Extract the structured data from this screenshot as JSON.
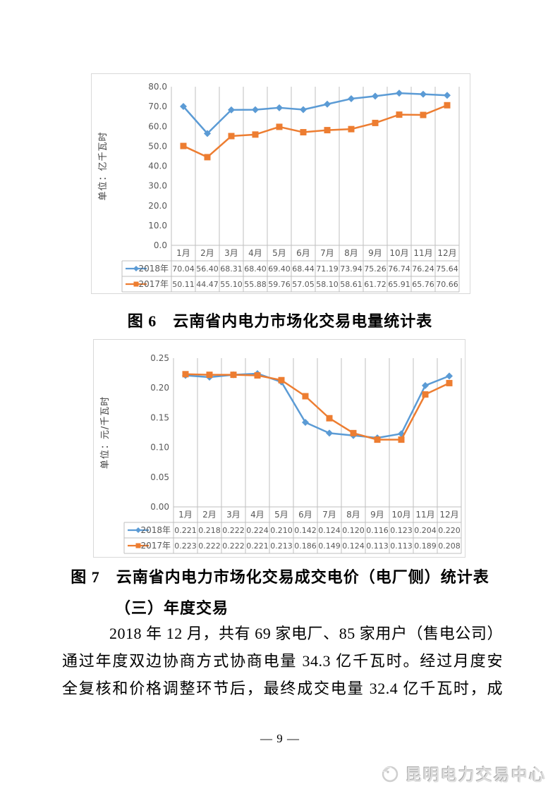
{
  "document": {
    "page_number": "— 9 —",
    "section_heading": "（三）年度交易",
    "paragraph_lines": [
      "2018 年 12 月，共有 69 家电厂、85 家用户（售电公司）",
      "通过年度双边协商方式协商电量 34.3 亿千瓦时。经过月度安",
      "全复核和价格调整环节后，最终成交电量 32.4 亿千瓦时，成"
    ],
    "footer_logo_text": "昆明电力交易中心"
  },
  "figures": [
    {
      "caption": "图 6　云南省内电力市场化交易电量统计表"
    },
    {
      "caption": "图 7　云南省内电力市场化交易成交电价（电厂侧）统计表"
    }
  ],
  "chart_data": [
    {
      "id": "chart6",
      "type": "line",
      "title": "云南省内电力市场化交易电量统计表",
      "ylabel": "单位：亿千瓦时",
      "xlabel": "",
      "categories": [
        "1月",
        "2月",
        "3月",
        "4月",
        "5月",
        "6月",
        "7月",
        "8月",
        "9月",
        "10月",
        "11月",
        "12月"
      ],
      "series": [
        {
          "name": "2018年",
          "color": "#5B9BD5",
          "marker": "diamond",
          "values": [
            70.04,
            56.4,
            68.31,
            68.4,
            69.4,
            68.44,
            71.19,
            73.94,
            75.26,
            76.74,
            76.24,
            75.64
          ]
        },
        {
          "name": "2017年",
          "color": "#ED7D31",
          "marker": "square",
          "values": [
            50.11,
            44.47,
            55.1,
            55.88,
            59.76,
            57.05,
            58.1,
            58.61,
            61.72,
            65.91,
            65.76,
            70.66
          ]
        }
      ],
      "ylim": [
        0,
        80
      ],
      "ytick_labels": [
        "80.0",
        "70.0",
        "60.0",
        "50.0",
        "40.0",
        "30.0",
        "20.0",
        "10.0",
        "0.0"
      ],
      "decimals": 2,
      "grid": "vertical-only",
      "grid_color": "#BFBFBF",
      "text_color": "#595959",
      "legend_position": "table-left"
    },
    {
      "id": "chart7",
      "type": "line",
      "title": "云南省内电力市场化交易成交电价（电厂侧）统计表",
      "ylabel": "单位：元/千瓦时",
      "xlabel": "",
      "categories": [
        "1月",
        "2月",
        "3月",
        "4月",
        "5月",
        "6月",
        "7月",
        "8月",
        "9月",
        "10月",
        "11月",
        "12月"
      ],
      "series": [
        {
          "name": "2018年",
          "color": "#5B9BD5",
          "marker": "diamond",
          "values": [
            0.221,
            0.218,
            0.222,
            0.224,
            0.21,
            0.142,
            0.124,
            0.12,
            0.116,
            0.123,
            0.204,
            0.22
          ]
        },
        {
          "name": "2017年",
          "color": "#ED7D31",
          "marker": "square",
          "values": [
            0.223,
            0.222,
            0.222,
            0.221,
            0.213,
            0.186,
            0.149,
            0.124,
            0.113,
            0.113,
            0.189,
            0.208
          ]
        }
      ],
      "ylim": [
        0,
        0.25
      ],
      "ytick_labels": [
        "0.25",
        "0.20",
        "0.15",
        "0.10",
        "0.05",
        "0.00"
      ],
      "decimals": 3,
      "grid": "vertical-only",
      "grid_color": "#BFBFBF",
      "text_color": "#595959",
      "legend_position": "table-left"
    }
  ]
}
